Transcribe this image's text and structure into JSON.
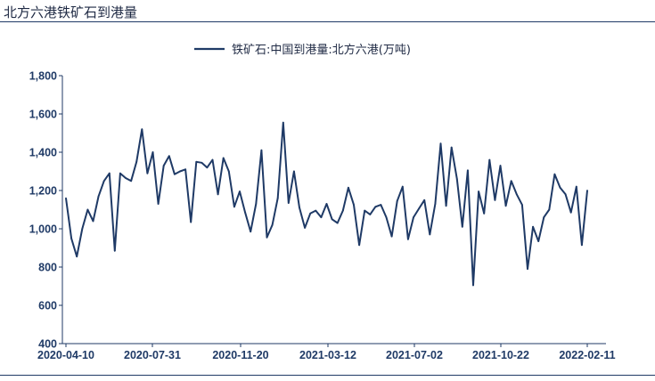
{
  "header": {
    "title": "北方六港铁矿石到港量"
  },
  "chart_data": {
    "type": "line",
    "title": "",
    "xlabel": "",
    "ylabel": "",
    "ylim": [
      400,
      1800
    ],
    "y_ticks": [
      400,
      600,
      800,
      1000,
      1200,
      1400,
      1600,
      1800
    ],
    "y_tick_labels": [
      "400",
      "600",
      "800",
      "1,000",
      "1,200",
      "1,400",
      "1,600",
      "1,800"
    ],
    "x_tick_labels": [
      "2020-04-10",
      "2020-07-31",
      "2020-11-20",
      "2021-03-12",
      "2021-07-02",
      "2021-10-22",
      "2022-02-11"
    ],
    "x_tick_dates": [
      "2020-04-10",
      "2020-07-31",
      "2020-11-20",
      "2021-03-12",
      "2021-07-02",
      "2021-10-22",
      "2022-02-11"
    ],
    "grid": false,
    "legend": {
      "position": "top-center"
    },
    "series": [
      {
        "name": "铁矿石:中国到港量:北方六港(万吨)",
        "color": "#1f3a66",
        "x": [
          "2020-04-10",
          "2020-04-17",
          "2020-04-24",
          "2020-05-01",
          "2020-05-08",
          "2020-05-15",
          "2020-05-22",
          "2020-05-29",
          "2020-06-05",
          "2020-06-12",
          "2020-06-19",
          "2020-06-26",
          "2020-07-03",
          "2020-07-10",
          "2020-07-17",
          "2020-07-24",
          "2020-07-31",
          "2020-08-07",
          "2020-08-14",
          "2020-08-21",
          "2020-08-28",
          "2020-09-04",
          "2020-09-11",
          "2020-09-18",
          "2020-09-25",
          "2020-10-02",
          "2020-10-09",
          "2020-10-16",
          "2020-10-23",
          "2020-10-30",
          "2020-11-06",
          "2020-11-13",
          "2020-11-20",
          "2020-11-27",
          "2020-12-04",
          "2020-12-11",
          "2020-12-18",
          "2020-12-25",
          "2021-01-01",
          "2021-01-08",
          "2021-01-15",
          "2021-01-22",
          "2021-01-29",
          "2021-02-05",
          "2021-02-12",
          "2021-02-19",
          "2021-02-26",
          "2021-03-05",
          "2021-03-12",
          "2021-03-19",
          "2021-03-26",
          "2021-04-02",
          "2021-04-09",
          "2021-04-16",
          "2021-04-23",
          "2021-04-30",
          "2021-05-07",
          "2021-05-14",
          "2021-05-21",
          "2021-05-28",
          "2021-06-04",
          "2021-06-11",
          "2021-06-18",
          "2021-06-25",
          "2021-07-02",
          "2021-07-09",
          "2021-07-16",
          "2021-07-23",
          "2021-07-30",
          "2021-08-06",
          "2021-08-13",
          "2021-08-20",
          "2021-08-27",
          "2021-09-03",
          "2021-09-10",
          "2021-09-17",
          "2021-09-24",
          "2021-10-01",
          "2021-10-08",
          "2021-10-15",
          "2021-10-22",
          "2021-10-29",
          "2021-11-05",
          "2021-11-12",
          "2021-11-19",
          "2021-11-26",
          "2021-12-03",
          "2021-12-10",
          "2021-12-17",
          "2021-12-24",
          "2021-12-31",
          "2022-01-07",
          "2022-01-14",
          "2022-01-21",
          "2022-01-28",
          "2022-02-04",
          "2022-02-11"
        ],
        "values": [
          1160,
          950,
          855,
          1000,
          1100,
          1040,
          1170,
          1250,
          1290,
          885,
          1290,
          1265,
          1250,
          1350,
          1520,
          1290,
          1400,
          1130,
          1330,
          1380,
          1285,
          1300,
          1310,
          1035,
          1350,
          1345,
          1320,
          1360,
          1180,
          1370,
          1300,
          1115,
          1195,
          1085,
          985,
          1130,
          1410,
          955,
          1020,
          1160,
          1555,
          1135,
          1300,
          1110,
          1005,
          1080,
          1095,
          1060,
          1130,
          1050,
          1030,
          1095,
          1215,
          1125,
          915,
          1095,
          1075,
          1115,
          1125,
          1060,
          960,
          1145,
          1220,
          945,
          1060,
          1105,
          1150,
          970,
          1130,
          1445,
          1120,
          1425,
          1260,
          1010,
          1305,
          705,
          1195,
          1080,
          1360,
          1150,
          1330,
          1120,
          1250,
          1180,
          1125,
          790,
          1010,
          935,
          1060,
          1100,
          1285,
          1215,
          1180,
          1085,
          1220,
          915,
          1200
        ]
      }
    ]
  }
}
